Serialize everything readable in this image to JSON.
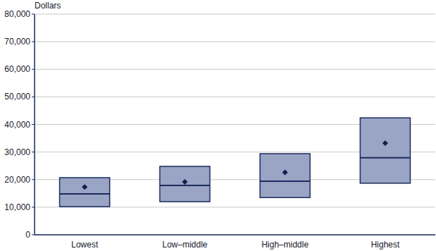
{
  "chart_data": {
    "type": "box",
    "y_label": "Dollars",
    "categories": [
      "Lowest",
      "Low–middle",
      "High–middle",
      "Highest"
    ],
    "q1": [
      10200,
      12000,
      13500,
      18700
    ],
    "median": [
      14800,
      17900,
      19400,
      27900
    ],
    "q3": [
      20700,
      24800,
      29400,
      42400
    ],
    "mean": [
      17300,
      19200,
      22600,
      33200
    ],
    "color": "#9aa4c4",
    "ylim": [
      0,
      80000
    ],
    "yticks": [
      0,
      {
        "value": 10000,
        "label": "10,000"
      },
      {
        "value": 20000,
        "label": "20,000"
      },
      {
        "value": 30000,
        "label": "30,000"
      },
      {
        "value": 40000,
        "label": "40,000"
      },
      {
        "value": 50000,
        "label": "50,000"
      },
      {
        "value": 60000,
        "label": "60,000"
      },
      {
        "value": 70000,
        "label": "70,000"
      },
      {
        "value": 80000,
        "label": "80,000"
      }
    ],
    "grid": true
  }
}
